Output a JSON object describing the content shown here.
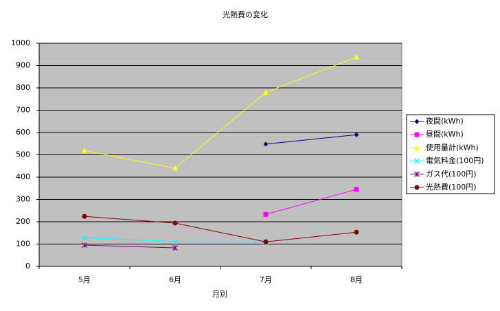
{
  "chart_data": {
    "type": "line",
    "title": "光熱費の変化",
    "x_label": "月別",
    "categories": [
      "5月",
      "6月",
      "7月",
      "8月"
    ],
    "series": [
      {
        "name": "夜間(kWh)",
        "color": "#000080",
        "marker": "diamond",
        "values": [
          null,
          null,
          548,
          590
        ]
      },
      {
        "name": "昼間(kWh)",
        "color": "#ff00ff",
        "marker": "square",
        "values": [
          null,
          null,
          233,
          345
        ]
      },
      {
        "name": "使用量計(kWh)",
        "color": "#ffff00",
        "marker": "triangle",
        "values": [
          518,
          440,
          780,
          938
        ]
      },
      {
        "name": "電気料金(100円)",
        "color": "#00ffff",
        "marker": "x",
        "values": [
          128,
          112,
          110,
          null
        ]
      },
      {
        "name": "ガス代(100円)",
        "color": "#800080",
        "marker": "asterisk",
        "values": [
          95,
          83,
          null,
          null
        ]
      },
      {
        "name": "光熱費(100円)",
        "color": "#800000",
        "marker": "circle",
        "values": [
          224,
          194,
          110,
          153
        ]
      }
    ],
    "ylim": [
      0,
      1000
    ],
    "yticks": [
      0,
      100,
      200,
      300,
      400,
      500,
      600,
      700,
      800,
      900,
      1000
    ],
    "grid": true,
    "background": "#c0c0c0",
    "legend": "right"
  }
}
